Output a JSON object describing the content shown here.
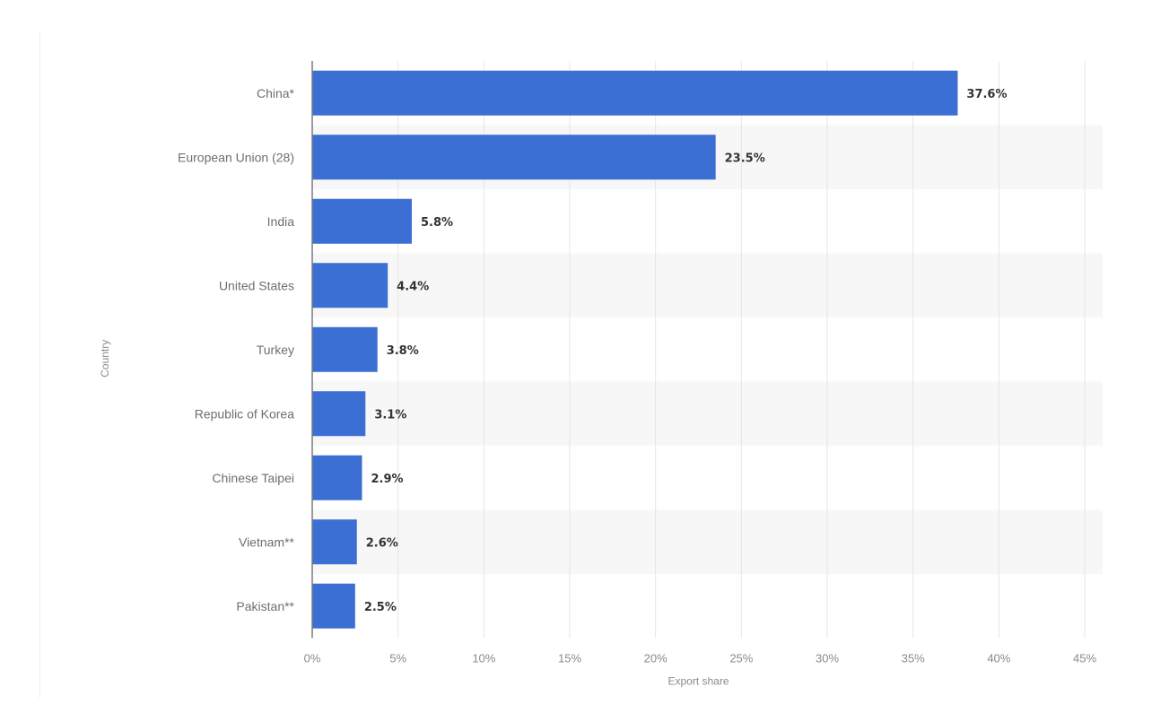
{
  "chart_data": {
    "type": "bar",
    "orientation": "horizontal",
    "categories": [
      "China*",
      "European Union (28)",
      "India",
      "United States",
      "Turkey",
      "Republic of Korea",
      "Chinese Taipei",
      "Vietnam**",
      "Pakistan**"
    ],
    "values": [
      37.6,
      23.5,
      5.8,
      4.4,
      3.8,
      3.1,
      2.9,
      2.6,
      2.5
    ],
    "data_labels": [
      "37.6%",
      "23.5%",
      "5.8%",
      "4.4%",
      "3.8%",
      "3.1%",
      "2.9%",
      "2.6%",
      "2.5%"
    ],
    "xlabel": "Export share",
    "ylabel": "Country",
    "xlim": [
      0,
      45
    ],
    "x_ticks": [
      0,
      5,
      10,
      15,
      20,
      25,
      30,
      35,
      40,
      45
    ],
    "x_tick_labels": [
      "0%",
      "5%",
      "10%",
      "15%",
      "20%",
      "25%",
      "30%",
      "35%",
      "40%",
      "45%"
    ],
    "grid": "vertical",
    "alternating_row_bands": true,
    "bar_color": "#3b6fd4",
    "band_color": "#f7f7f7",
    "grid_color": "#e6e6e6"
  }
}
